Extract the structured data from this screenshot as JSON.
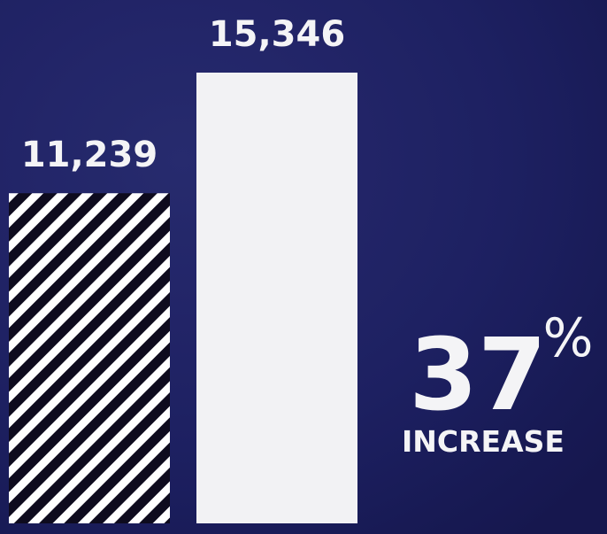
{
  "chart_data": {
    "type": "bar",
    "categories": [
      null,
      null
    ],
    "values": [
      11239,
      15346
    ],
    "value_labels": [
      "11,239",
      "15,346"
    ],
    "colors": [
      "#ffffff",
      "#f2f2f4"
    ],
    "highlight": {
      "number": "37",
      "unit": "%",
      "label": "INCREASE"
    }
  }
}
